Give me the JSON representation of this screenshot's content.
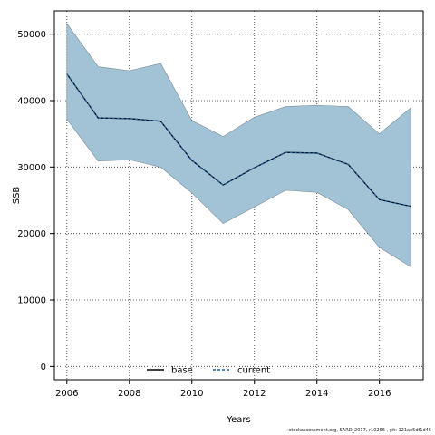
{
  "chart_data": {
    "type": "area",
    "xlabel": "Years",
    "ylabel": "SSB",
    "xlim": [
      2005.6,
      2017.4
    ],
    "ylim": [
      -2000,
      53500
    ],
    "x_ticks": [
      2006,
      2008,
      2010,
      2012,
      2014,
      2016
    ],
    "y_ticks": [
      0,
      10000,
      20000,
      30000,
      40000,
      50000
    ],
    "grid": true,
    "legend_position": "bottom-center",
    "x": [
      2006,
      2007,
      2008,
      2009,
      2010,
      2011,
      2012,
      2013,
      2014,
      2015,
      2016,
      2017
    ],
    "band": {
      "upper": [
        51600,
        45100,
        44500,
        45600,
        37000,
        34600,
        37500,
        39100,
        39300,
        39100,
        35000,
        38900
      ],
      "lower": [
        37200,
        30900,
        31100,
        30000,
        26100,
        21500,
        24000,
        26500,
        26200,
        23600,
        17900,
        15000
      ],
      "color": "#a1c3d5"
    },
    "series": [
      {
        "name": "base",
        "style": "solid",
        "color": "#000000",
        "values": [
          44000,
          37400,
          37300,
          36900,
          31000,
          27300,
          29900,
          32200,
          32100,
          30400,
          25100,
          24100
        ]
      },
      {
        "name": "current",
        "style": "dashed",
        "color": "#1f5fa0",
        "values": [
          44000,
          37400,
          37300,
          36900,
          31000,
          27300,
          29900,
          32200,
          32100,
          30400,
          25100,
          24100
        ]
      }
    ]
  },
  "footnote": "stockassessment.org, SARD_2017, r10266 , git: 121ae5df1d45"
}
